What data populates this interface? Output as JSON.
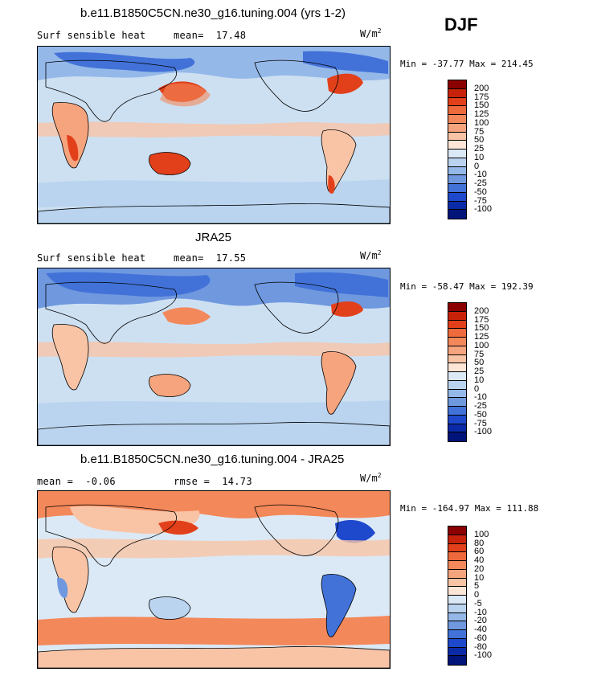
{
  "season": "DJF",
  "panels": [
    {
      "title": "b.e11.B1850C5CN.ne30_g16.tuning.004 (yrs 1-2)",
      "variable": "Surf sensible heat",
      "stat1_label": "mean=",
      "stat1_value": "17.48",
      "stat2_label": "",
      "stat2_value": "",
      "units_base": "W/m",
      "units_exp": "2",
      "range_text": "Min = -37.77 Max = 214.45",
      "colorbar_labels": [
        "200",
        "175",
        "150",
        "125",
        "100",
        "75",
        "50",
        "25",
        "10",
        "0",
        "-10",
        "-25",
        "-50",
        "-75",
        "-100"
      ],
      "colorbar_colors": [
        "#8b0000",
        "#c8230a",
        "#e2401a",
        "#ee6a3c",
        "#f3885a",
        "#f6a47e",
        "#f9c4a6",
        "#fde6d6",
        "#dbe9f6",
        "#bad4ef",
        "#94b8e8",
        "#6f98df",
        "#4272d8",
        "#1f49cc",
        "#0b2aa8",
        "#00147a"
      ]
    },
    {
      "title": "JRA25",
      "variable": "Surf sensible heat",
      "stat1_label": "mean=",
      "stat1_value": "17.55",
      "stat2_label": "",
      "stat2_value": "",
      "units_base": "W/m",
      "units_exp": "2",
      "range_text": "Min = -58.47 Max = 192.39",
      "colorbar_labels": [
        "200",
        "175",
        "150",
        "125",
        "100",
        "75",
        "50",
        "25",
        "10",
        "0",
        "-10",
        "-25",
        "-50",
        "-75",
        "-100"
      ],
      "colorbar_colors": [
        "#8b0000",
        "#c8230a",
        "#e2401a",
        "#ee6a3c",
        "#f3885a",
        "#f6a47e",
        "#f9c4a6",
        "#fde6d6",
        "#dbe9f6",
        "#bad4ef",
        "#94b8e8",
        "#6f98df",
        "#4272d8",
        "#1f49cc",
        "#0b2aa8",
        "#00147a"
      ]
    },
    {
      "title": "b.e11.B1850C5CN.ne30_g16.tuning.004 - JRA25",
      "variable": "",
      "stat1_label": "mean =",
      "stat1_value": "-0.06",
      "stat2_label": "rmse =",
      "stat2_value": "14.73",
      "units_base": "W/m",
      "units_exp": "2",
      "range_text": "Min = -164.97 Max = 111.88",
      "colorbar_labels": [
        "100",
        "80",
        "60",
        "40",
        "20",
        "10",
        "5",
        "0",
        "-5",
        "-10",
        "-20",
        "-40",
        "-60",
        "-80",
        "-100"
      ],
      "colorbar_colors": [
        "#8b0000",
        "#c8230a",
        "#e2401a",
        "#ee6a3c",
        "#f3885a",
        "#f6a47e",
        "#f9c4a6",
        "#fde6d6",
        "#dbe9f6",
        "#bad4ef",
        "#94b8e8",
        "#6f98df",
        "#4272d8",
        "#1f49cc",
        "#0b2aa8",
        "#00147a"
      ]
    }
  ],
  "palette": {
    "ocean_base": "#cde0f2",
    "warm_strong": "#e2401a",
    "warm_mid": "#f3885a",
    "warm_light": "#f9c4a6",
    "cool_light": "#bad4ef",
    "cool_mid": "#6f98df",
    "cool_strong": "#1f49cc"
  }
}
